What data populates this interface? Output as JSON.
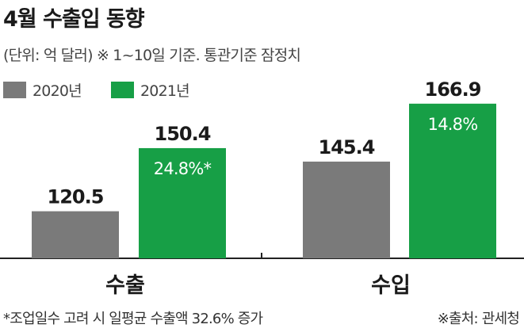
{
  "title": "4월 수출입 동향",
  "subtitle": "(단위: 억 달러) ※ 1~10일 기준. 통관기준 잠정치",
  "footnote": "*조업일수 고려 시 일평균 수출액 32.6% 증가",
  "source": "※출처: 관세청",
  "colors": {
    "series2020": "#7a7a7a",
    "series2021": "#179f46",
    "axis": "#222222"
  },
  "chart_data": {
    "type": "bar",
    "categories": [
      "수출",
      "수입"
    ],
    "series": [
      {
        "name": "2020년",
        "values": [
          120.5,
          145.4
        ],
        "value_labels": [
          "120.5",
          "145.4"
        ]
      },
      {
        "name": "2021년",
        "values": [
          150.4,
          166.9
        ],
        "value_labels": [
          "150.4",
          "166.9"
        ],
        "inner_labels": [
          "24.8%*",
          "14.8%"
        ]
      }
    ],
    "legend_position": "top-left",
    "grid": false
  }
}
